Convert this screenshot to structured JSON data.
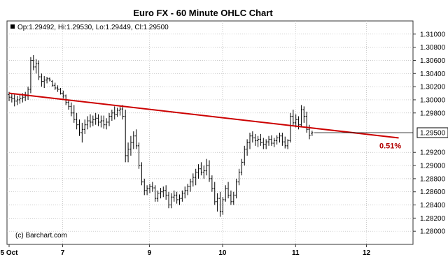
{
  "chart_data": {
    "type": "ohlc",
    "title": "Euro FX - 60 Minute OHLC Chart",
    "info_line": "Op:1.29492, Hi:1.29530, Lo:1.29449, Cl:1.29500",
    "watermark": "(c) Barchart.com",
    "last_price_label": "1.29500",
    "annotation": "0.51%",
    "ylim": [
      1.278,
      1.312
    ],
    "yticks": [
      {
        "value": 1.28,
        "label": "1.28000"
      },
      {
        "value": 1.282,
        "label": "1.28200"
      },
      {
        "value": 1.284,
        "label": "1.28400"
      },
      {
        "value": 1.286,
        "label": "1.28600"
      },
      {
        "value": 1.288,
        "label": "1.28800"
      },
      {
        "value": 1.29,
        "label": "1.29000"
      },
      {
        "value": 1.292,
        "label": "1.29200"
      },
      {
        "value": 1.298,
        "label": "1.29800"
      },
      {
        "value": 1.3,
        "label": "1.30000"
      },
      {
        "value": 1.302,
        "label": "1.30200"
      },
      {
        "value": 1.304,
        "label": "1.30400"
      },
      {
        "value": 1.306,
        "label": "1.30600"
      },
      {
        "value": 1.308,
        "label": "1.30800"
      },
      {
        "value": 1.31,
        "label": "1.31000"
      }
    ],
    "xticks": [
      {
        "bar": 0,
        "label": "5 Oct"
      },
      {
        "bar": 19.8,
        "label": "7"
      },
      {
        "bar": 51.9,
        "label": "9"
      },
      {
        "bar": 78.9,
        "label": "10"
      },
      {
        "bar": 105.9,
        "label": "11"
      },
      {
        "bar": 132.1,
        "label": "12"
      }
    ],
    "trendline": {
      "start": {
        "bar": 0,
        "value": 1.301
      },
      "end": {
        "bar": 144,
        "value": 1.2942
      }
    },
    "grid": true,
    "bars": [
      [
        1.3008,
        1.3012,
        1.2998,
        1.3004
      ],
      [
        1.3004,
        1.301,
        1.2996,
        1.3002
      ],
      [
        1.3002,
        1.3008,
        1.299,
        1.2998
      ],
      [
        1.2998,
        1.3006,
        1.2992,
        1.3
      ],
      [
        1.3,
        1.3008,
        1.2994,
        1.3002
      ],
      [
        1.3002,
        1.301,
        1.2996,
        1.3004
      ],
      [
        1.3004,
        1.3012,
        1.2998,
        1.3006
      ],
      [
        1.3006,
        1.302,
        1.3,
        1.3016
      ],
      [
        1.3016,
        1.3065,
        1.301,
        1.306
      ],
      [
        1.306,
        1.3068,
        1.3045,
        1.305
      ],
      [
        1.305,
        1.3062,
        1.304,
        1.3055
      ],
      [
        1.3055,
        1.306,
        1.303,
        1.3035
      ],
      [
        1.3035,
        1.304,
        1.302,
        1.3028
      ],
      [
        1.3028,
        1.3036,
        1.3018,
        1.303
      ],
      [
        1.303,
        1.3035,
        1.3025,
        1.3032
      ],
      [
        1.3032,
        1.3034,
        1.3028,
        1.303
      ],
      [
        1.3028,
        1.303,
        1.302,
        1.3022
      ],
      [
        1.3022,
        1.3026,
        1.3015,
        1.3018
      ],
      [
        1.3018,
        1.3022,
        1.3012,
        1.3016
      ],
      [
        1.3016,
        1.3018,
        1.3008,
        1.301
      ],
      [
        1.301,
        1.3014,
        1.3002,
        1.3006
      ],
      [
        1.3006,
        1.3008,
        1.2992,
        1.2996
      ],
      [
        1.2996,
        1.3,
        1.2985,
        1.299
      ],
      [
        1.299,
        1.2996,
        1.2975,
        1.298
      ],
      [
        1.298,
        1.2992,
        1.2965,
        1.297
      ],
      [
        1.297,
        1.298,
        1.2955,
        1.2962
      ],
      [
        1.2962,
        1.297,
        1.2945,
        1.295
      ],
      [
        1.295,
        1.2965,
        1.2935,
        1.2955
      ],
      [
        1.2955,
        1.297,
        1.2948,
        1.2962
      ],
      [
        1.2962,
        1.2975,
        1.2955,
        1.2968
      ],
      [
        1.2968,
        1.2978,
        1.2958,
        1.2966
      ],
      [
        1.2966,
        1.2976,
        1.296,
        1.297
      ],
      [
        1.297,
        1.298,
        1.2962,
        1.2972
      ],
      [
        1.2972,
        1.2978,
        1.296,
        1.2966
      ],
      [
        1.2966,
        1.2976,
        1.2958,
        1.2968
      ],
      [
        1.2968,
        1.2976,
        1.2956,
        1.2962
      ],
      [
        1.2962,
        1.2972,
        1.2955,
        1.2966
      ],
      [
        1.2966,
        1.298,
        1.296,
        1.2975
      ],
      [
        1.2975,
        1.2985,
        1.2968,
        1.298
      ],
      [
        1.298,
        1.299,
        1.297,
        1.2978
      ],
      [
        1.2978,
        1.2988,
        1.2974,
        1.2984
      ],
      [
        1.2984,
        1.299,
        1.2976,
        1.2986
      ],
      [
        1.2986,
        1.2992,
        1.297,
        1.2975
      ],
      [
        1.2975,
        1.2985,
        1.2905,
        1.2915
      ],
      [
        1.2915,
        1.2935,
        1.2905,
        1.2925
      ],
      [
        1.2925,
        1.2945,
        1.2915,
        1.2935
      ],
      [
        1.2935,
        1.2952,
        1.2925,
        1.2945
      ],
      [
        1.2945,
        1.2955,
        1.2925,
        1.293
      ],
      [
        1.293,
        1.2935,
        1.2895,
        1.29
      ],
      [
        1.29,
        1.2905,
        1.287,
        1.2875
      ],
      [
        1.2875,
        1.288,
        1.2855,
        1.2862
      ],
      [
        1.2862,
        1.287,
        1.2855,
        1.2865
      ],
      [
        1.2865,
        1.2872,
        1.2858,
        1.2868
      ],
      [
        1.2868,
        1.2875,
        1.286,
        1.2866
      ],
      [
        1.2866,
        1.287,
        1.2845,
        1.285
      ],
      [
        1.285,
        1.2862,
        1.2845,
        1.2858
      ],
      [
        1.2858,
        1.2866,
        1.285,
        1.286
      ],
      [
        1.286,
        1.2868,
        1.2852,
        1.2862
      ],
      [
        1.2862,
        1.287,
        1.2848,
        1.2855
      ],
      [
        1.2855,
        1.286,
        1.2835,
        1.284
      ],
      [
        1.284,
        1.2858,
        1.2835,
        1.2852
      ],
      [
        1.2852,
        1.2862,
        1.2845,
        1.2855
      ],
      [
        1.2855,
        1.286,
        1.2842,
        1.2848
      ],
      [
        1.2848,
        1.2856,
        1.284,
        1.285
      ],
      [
        1.285,
        1.2862,
        1.2845,
        1.2858
      ],
      [
        1.2858,
        1.2868,
        1.285,
        1.2862
      ],
      [
        1.2862,
        1.2872,
        1.2855,
        1.2868
      ],
      [
        1.2868,
        1.288,
        1.286,
        1.2875
      ],
      [
        1.2875,
        1.2888,
        1.2868,
        1.2882
      ],
      [
        1.2882,
        1.2895,
        1.287,
        1.289
      ],
      [
        1.289,
        1.2902,
        1.288,
        1.2895
      ],
      [
        1.2895,
        1.2905,
        1.2885,
        1.289
      ],
      [
        1.289,
        1.29,
        1.288,
        1.2892
      ],
      [
        1.2892,
        1.291,
        1.2885,
        1.29
      ],
      [
        1.29,
        1.2908,
        1.2875,
        1.288
      ],
      [
        1.288,
        1.2885,
        1.286,
        1.2865
      ],
      [
        1.2865,
        1.2875,
        1.284,
        1.2845
      ],
      [
        1.2845,
        1.2858,
        1.283,
        1.285
      ],
      [
        1.285,
        1.286,
        1.2822,
        1.283
      ],
      [
        1.283,
        1.2852,
        1.2825,
        1.2848
      ],
      [
        1.2848,
        1.287,
        1.2845,
        1.2865
      ],
      [
        1.2865,
        1.2875,
        1.285,
        1.2855
      ],
      [
        1.2855,
        1.2862,
        1.284,
        1.2845
      ],
      [
        1.2845,
        1.286,
        1.284,
        1.2855
      ],
      [
        1.2855,
        1.288,
        1.285,
        1.2875
      ],
      [
        1.2875,
        1.2895,
        1.287,
        1.289
      ],
      [
        1.289,
        1.291,
        1.2885,
        1.2905
      ],
      [
        1.2905,
        1.293,
        1.29,
        1.2925
      ],
      [
        1.2925,
        1.294,
        1.2915,
        1.2935
      ],
      [
        1.2935,
        1.295,
        1.2925,
        1.2945
      ],
      [
        1.2945,
        1.2952,
        1.2935,
        1.2942
      ],
      [
        1.2942,
        1.2948,
        1.293,
        1.2938
      ],
      [
        1.2938,
        1.2945,
        1.2928,
        1.294
      ],
      [
        1.294,
        1.2948,
        1.293,
        1.2935
      ],
      [
        1.2935,
        1.2942,
        1.2925,
        1.2932
      ],
      [
        1.2932,
        1.294,
        1.2925,
        1.2936
      ],
      [
        1.2936,
        1.2945,
        1.293,
        1.294
      ],
      [
        1.294,
        1.2946,
        1.293,
        1.2934
      ],
      [
        1.2934,
        1.2942,
        1.2928,
        1.2938
      ],
      [
        1.2938,
        1.2946,
        1.2932,
        1.2942
      ],
      [
        1.2942,
        1.295,
        1.2935,
        1.2945
      ],
      [
        1.2945,
        1.295,
        1.293,
        1.2936
      ],
      [
        1.2936,
        1.2944,
        1.2926,
        1.293
      ],
      [
        1.293,
        1.294,
        1.2925,
        1.2938
      ],
      [
        1.2938,
        1.298,
        1.2935,
        1.2975
      ],
      [
        1.2975,
        1.2985,
        1.296,
        1.2965
      ],
      [
        1.2965,
        1.2978,
        1.2958,
        1.297
      ],
      [
        1.297,
        1.2975,
        1.2955,
        1.2962
      ],
      [
        1.2962,
        1.2992,
        1.2958,
        1.2985
      ],
      [
        1.2985,
        1.299,
        1.2965,
        1.2975
      ],
      [
        1.2975,
        1.2982,
        1.295,
        1.2955
      ],
      [
        1.2955,
        1.2962,
        1.294,
        1.2946
      ],
      [
        1.2949,
        1.2953,
        1.2945,
        1.295
      ]
    ]
  }
}
